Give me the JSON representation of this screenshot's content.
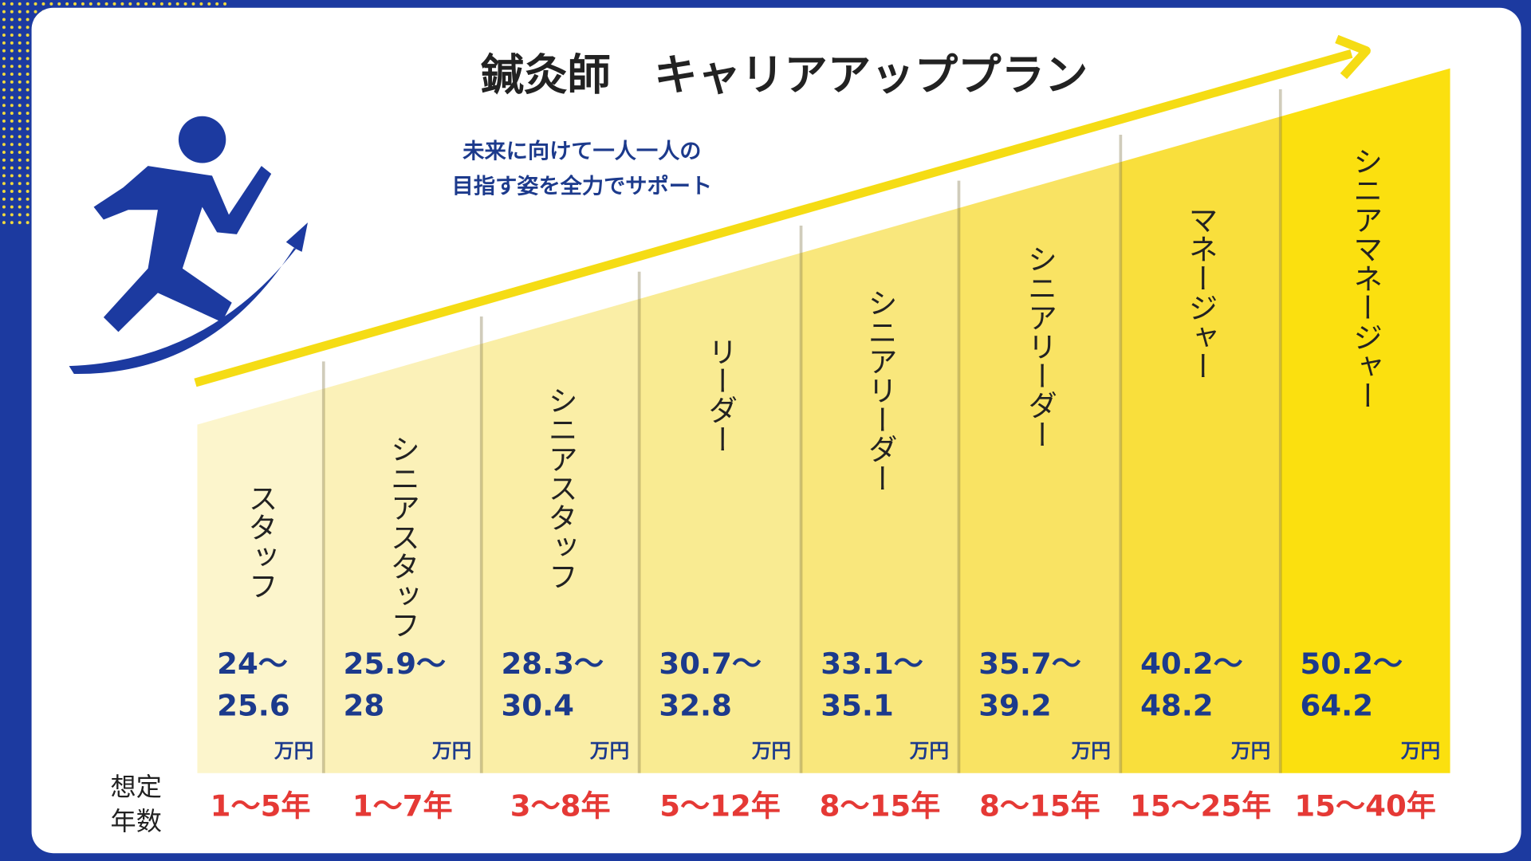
{
  "header": {
    "title": "鍼灸師　キャリアアッププラン",
    "subtitle_lines": [
      "未来に向けて一人一人の",
      "目指す姿を全力でサポート"
    ]
  },
  "years_label_lines": [
    "想定",
    "年数"
  ],
  "unit": "万円",
  "stages": [
    {
      "role": "スタッフ",
      "salary_from": "24〜",
      "salary_to": "25.6",
      "years": "1〜5年"
    },
    {
      "role": "シニアスタッフ",
      "salary_from": "25.9〜",
      "salary_to": "28",
      "years": "1〜7年"
    },
    {
      "role": "シニアスタッフ",
      "salary_from": "28.3〜",
      "salary_to": "30.4",
      "years": "3〜8年"
    },
    {
      "role": "リーダー",
      "salary_from": "30.7〜",
      "salary_to": "32.8",
      "years": "5〜12年"
    },
    {
      "role": "シニアリーダー",
      "salary_from": "33.1〜",
      "salary_to": "35.1",
      "years": "8〜15年"
    },
    {
      "role": "シニアリーダー",
      "salary_from": "35.7〜",
      "salary_to": "39.2",
      "years": "8〜15年"
    },
    {
      "role": "マネージャー",
      "salary_from": "40.2〜",
      "salary_to": "48.2",
      "years": "15〜25年"
    },
    {
      "role": "シニアマネージャー",
      "salary_from": "50.2〜",
      "salary_to": "64.2",
      "years": "15〜40年"
    }
  ]
}
